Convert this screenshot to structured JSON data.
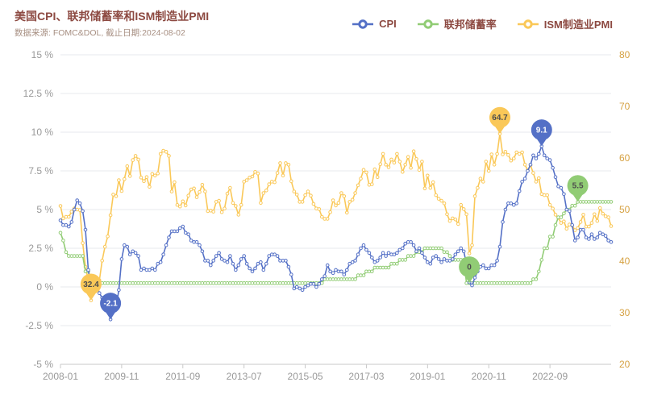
{
  "title": "美国CPI、联邦储蓄率和ISM制造业PMI",
  "subtitle": "数据来源: FOMC&DOL, 截止日期:2024-08-02",
  "colors": {
    "background": "#ffffff",
    "title_text": "#8d4a42",
    "subtitle_text": "#a78f82",
    "legend_text": "#8d4a42",
    "cpi": "#5470c6",
    "fed": "#91cc75",
    "ism": "#fac858",
    "grid_line": "#e7e9ee",
    "axis_line": "#c8c8c8",
    "left_axis_text": "#999999",
    "x_axis_text": "#999999",
    "right_axis_text": "#d6a243"
  },
  "legend": [
    {
      "label": "CPI",
      "color": "#5470c6"
    },
    {
      "label": "联邦储蓄率",
      "color": "#91cc75"
    },
    {
      "label": "ISM制造业PMI",
      "color": "#fac858"
    }
  ],
  "chart_data": {
    "type": "line",
    "title": "美国CPI、联邦储蓄率和ISM制造业PMI",
    "subtitle": "数据来源: FOMC&DOL, 截止日期:2024-08-02",
    "x_unit": "month",
    "x_start": "2008-01",
    "x_end": "2024-07",
    "x_tick_labels": [
      "2008-01",
      "2009-11",
      "2011-09",
      "2013-07",
      "2015-05",
      "2017-03",
      "2019-01",
      "2020-11",
      "2022-09"
    ],
    "x_tick_indices": [
      0,
      22,
      44,
      66,
      88,
      110,
      132,
      154,
      176
    ],
    "grid": true,
    "legend_position": "top",
    "left_axis": {
      "min": -5,
      "max": 15,
      "tick_values": [
        15,
        12.5,
        10,
        7.5,
        5,
        2.5,
        0,
        -2.5,
        -5
      ],
      "tick_labels": [
        "15 %",
        "12.5 %",
        "10 %",
        "7.5 %",
        "5 %",
        "2.5 %",
        "0 %",
        "-2.5 %",
        "-5 %"
      ]
    },
    "right_axis": {
      "min": 20,
      "max": 80,
      "tick_values": [
        80,
        70,
        60,
        50,
        40,
        30,
        20
      ],
      "tick_labels": [
        "80",
        "70",
        "60",
        "50",
        "40",
        "30",
        "20"
      ]
    },
    "series": [
      {
        "id": "cpi",
        "name": "CPI",
        "axis": "left",
        "color": "#5470c6",
        "values": [
          4.3,
          4.0,
          4.0,
          3.9,
          4.2,
          5.0,
          5.6,
          5.4,
          4.9,
          3.7,
          1.1,
          0.1,
          0.0,
          0.2,
          -0.4,
          -0.7,
          -1.3,
          -1.4,
          -2.1,
          -1.5,
          -1.3,
          -0.2,
          1.8,
          2.7,
          2.6,
          2.1,
          2.3,
          2.2,
          2.0,
          1.1,
          1.2,
          1.1,
          1.1,
          1.2,
          1.1,
          1.5,
          1.6,
          2.1,
          2.7,
          3.2,
          3.6,
          3.6,
          3.6,
          3.8,
          3.9,
          3.5,
          3.4,
          3.0,
          2.9,
          2.9,
          2.7,
          2.3,
          1.7,
          1.7,
          1.4,
          1.7,
          2.0,
          2.2,
          1.8,
          1.7,
          1.6,
          2.0,
          1.5,
          1.1,
          1.4,
          1.8,
          2.0,
          1.5,
          1.2,
          1.0,
          1.2,
          1.5,
          1.6,
          1.1,
          1.5,
          2.0,
          2.1,
          2.1,
          2.0,
          1.7,
          1.7,
          1.7,
          1.3,
          0.8,
          -0.1,
          0.0,
          -0.1,
          -0.2,
          0.0,
          0.1,
          0.2,
          0.2,
          0.0,
          0.2,
          0.5,
          0.7,
          1.4,
          1.0,
          0.9,
          1.1,
          1.0,
          1.0,
          0.8,
          1.1,
          1.5,
          1.6,
          1.7,
          2.1,
          2.5,
          2.7,
          2.4,
          2.2,
          1.9,
          1.6,
          1.7,
          1.9,
          2.2,
          2.0,
          2.2,
          2.1,
          2.1,
          2.2,
          2.4,
          2.5,
          2.8,
          2.9,
          2.9,
          2.7,
          2.3,
          2.5,
          2.2,
          1.9,
          1.6,
          1.5,
          1.9,
          2.0,
          1.8,
          1.6,
          1.8,
          1.7,
          1.7,
          1.8,
          2.1,
          2.3,
          2.5,
          2.3,
          1.5,
          0.3,
          0.1,
          0.6,
          1.0,
          1.3,
          1.4,
          1.2,
          1.2,
          1.4,
          1.4,
          1.7,
          2.6,
          4.2,
          5.0,
          5.4,
          5.4,
          5.3,
          5.4,
          6.2,
          6.8,
          7.0,
          7.5,
          7.9,
          8.5,
          8.3,
          8.6,
          9.1,
          8.5,
          8.3,
          8.2,
          7.7,
          7.1,
          6.5,
          6.4,
          6.0,
          5.0,
          4.9,
          4.0,
          3.0,
          3.2,
          3.7,
          3.7,
          3.2,
          3.1,
          3.4,
          3.1,
          3.2,
          3.5,
          3.4,
          3.3,
          3.0,
          2.9
        ]
      },
      {
        "id": "fed",
        "name": "联邦储蓄率",
        "axis": "left",
        "color": "#91cc75",
        "values": [
          3.5,
          3.0,
          2.25,
          2.0,
          2.0,
          2.0,
          2.0,
          2.0,
          2.0,
          1.0,
          1.0,
          0.25,
          0.25,
          0.25,
          0.25,
          0.25,
          0.25,
          0.25,
          0.25,
          0.25,
          0.25,
          0.25,
          0.25,
          0.25,
          0.25,
          0.25,
          0.25,
          0.25,
          0.25,
          0.25,
          0.25,
          0.25,
          0.25,
          0.25,
          0.25,
          0.25,
          0.25,
          0.25,
          0.25,
          0.25,
          0.25,
          0.25,
          0.25,
          0.25,
          0.25,
          0.25,
          0.25,
          0.25,
          0.25,
          0.25,
          0.25,
          0.25,
          0.25,
          0.25,
          0.25,
          0.25,
          0.25,
          0.25,
          0.25,
          0.25,
          0.25,
          0.25,
          0.25,
          0.25,
          0.25,
          0.25,
          0.25,
          0.25,
          0.25,
          0.25,
          0.25,
          0.25,
          0.25,
          0.25,
          0.25,
          0.25,
          0.25,
          0.25,
          0.25,
          0.25,
          0.25,
          0.25,
          0.25,
          0.25,
          0.25,
          0.25,
          0.25,
          0.25,
          0.25,
          0.25,
          0.25,
          0.25,
          0.25,
          0.25,
          0.25,
          0.5,
          0.5,
          0.5,
          0.5,
          0.5,
          0.5,
          0.5,
          0.5,
          0.5,
          0.5,
          0.5,
          0.5,
          0.75,
          0.75,
          0.75,
          1.0,
          1.0,
          1.0,
          1.25,
          1.25,
          1.25,
          1.25,
          1.25,
          1.25,
          1.5,
          1.5,
          1.5,
          1.75,
          1.75,
          1.75,
          2.0,
          2.0,
          2.0,
          2.25,
          2.25,
          2.25,
          2.5,
          2.5,
          2.5,
          2.5,
          2.5,
          2.5,
          2.5,
          2.25,
          2.25,
          2.0,
          1.75,
          1.75,
          1.75,
          1.75,
          1.75,
          0.25,
          0.25,
          0.25,
          0.25,
          0.25,
          0.25,
          0.25,
          0.25,
          0.25,
          0.25,
          0.25,
          0.25,
          0.25,
          0.25,
          0.25,
          0.25,
          0.25,
          0.25,
          0.25,
          0.25,
          0.25,
          0.25,
          0.25,
          0.25,
          0.5,
          0.5,
          1.0,
          1.75,
          2.5,
          2.5,
          3.25,
          3.25,
          4.0,
          4.5,
          4.5,
          4.75,
          5.0,
          5.0,
          5.25,
          5.25,
          5.5,
          5.5,
          5.5,
          5.5,
          5.5,
          5.5,
          5.5,
          5.5,
          5.5,
          5.5,
          5.5,
          5.5,
          5.5
        ]
      },
      {
        "id": "ism",
        "name": "ISM制造业PMI",
        "axis": "right",
        "color": "#fac858",
        "values": [
          50.7,
          48.3,
          48.6,
          48.6,
          49.6,
          50.2,
          50.0,
          49.9,
          43.5,
          38.9,
          36.2,
          32.4,
          35.6,
          35.8,
          36.3,
          40.1,
          42.8,
          44.8,
          48.9,
          52.9,
          52.6,
          55.7,
          53.6,
          55.9,
          58.4,
          56.5,
          59.6,
          60.4,
          59.7,
          56.2,
          55.5,
          56.3,
          54.4,
          56.9,
          56.6,
          57.0,
          60.8,
          61.4,
          61.2,
          60.4,
          53.5,
          55.3,
          50.9,
          50.6,
          51.6,
          50.8,
          52.7,
          53.9,
          54.1,
          52.4,
          53.4,
          54.8,
          53.5,
          49.7,
          49.8,
          49.6,
          51.5,
          51.7,
          49.5,
          50.2,
          53.1,
          54.2,
          51.3,
          50.7,
          49.0,
          50.9,
          55.4,
          55.7,
          56.2,
          56.4,
          57.3,
          57.0,
          51.3,
          53.2,
          53.7,
          54.9,
          55.4,
          55.3,
          57.1,
          59.0,
          56.6,
          59.0,
          58.7,
          55.5,
          53.5,
          52.9,
          51.5,
          51.5,
          52.8,
          53.5,
          52.7,
          51.1,
          50.2,
          50.1,
          48.6,
          48.2,
          48.2,
          49.5,
          51.8,
          50.8,
          51.3,
          53.2,
          52.6,
          49.4,
          51.5,
          51.9,
          53.2,
          54.7,
          56.0,
          57.7,
          57.2,
          54.8,
          54.9,
          57.8,
          56.3,
          58.8,
          60.8,
          58.7,
          58.2,
          59.7,
          59.1,
          60.8,
          59.3,
          57.3,
          58.7,
          60.2,
          58.1,
          61.3,
          59.8,
          57.7,
          59.3,
          54.1,
          56.6,
          54.2,
          55.3,
          52.8,
          52.1,
          51.7,
          51.2,
          49.1,
          47.8,
          48.3,
          48.1,
          47.2,
          50.9,
          50.1,
          49.1,
          41.5,
          43.1,
          52.6,
          54.2,
          56.0,
          55.4,
          59.3,
          57.5,
          60.7,
          58.7,
          60.8,
          64.7,
          60.7,
          61.2,
          60.6,
          59.5,
          59.9,
          61.1,
          60.8,
          61.1,
          58.7,
          57.6,
          58.6,
          57.1,
          55.4,
          56.1,
          53.0,
          52.8,
          52.8,
          50.9,
          50.2,
          49.0,
          48.4,
          47.4,
          47.7,
          46.3,
          47.1,
          46.9,
          46.0,
          46.4,
          47.6,
          49.0,
          46.7,
          46.7,
          47.4,
          49.1,
          47.8,
          50.3,
          49.2,
          48.7,
          48.5,
          46.8
        ]
      }
    ],
    "annotations": [
      {
        "id": "ism-min",
        "series": "ISM制造业PMI",
        "label": "32.4",
        "x": "2008-12",
        "index": 11,
        "value": 32.4
      },
      {
        "id": "cpi-min",
        "series": "CPI",
        "label": "-2.1",
        "x": "2009-07",
        "index": 18,
        "value": -2.1
      },
      {
        "id": "ism-max",
        "series": "ISM制造业PMI",
        "label": "64.7",
        "x": "2021-03",
        "index": 158,
        "value": 64.7
      },
      {
        "id": "cpi-max",
        "series": "CPI",
        "label": "9.1",
        "x": "2022-06",
        "index": 173,
        "value": 9.1
      },
      {
        "id": "fed-min",
        "series": "联邦储蓄率",
        "label": "0",
        "x": "2020-04",
        "index": 147,
        "value": 0.25
      },
      {
        "id": "fed-max",
        "series": "联邦储蓄率",
        "label": "5.5",
        "x": "2023-07",
        "index": 186,
        "value": 5.5
      }
    ]
  }
}
